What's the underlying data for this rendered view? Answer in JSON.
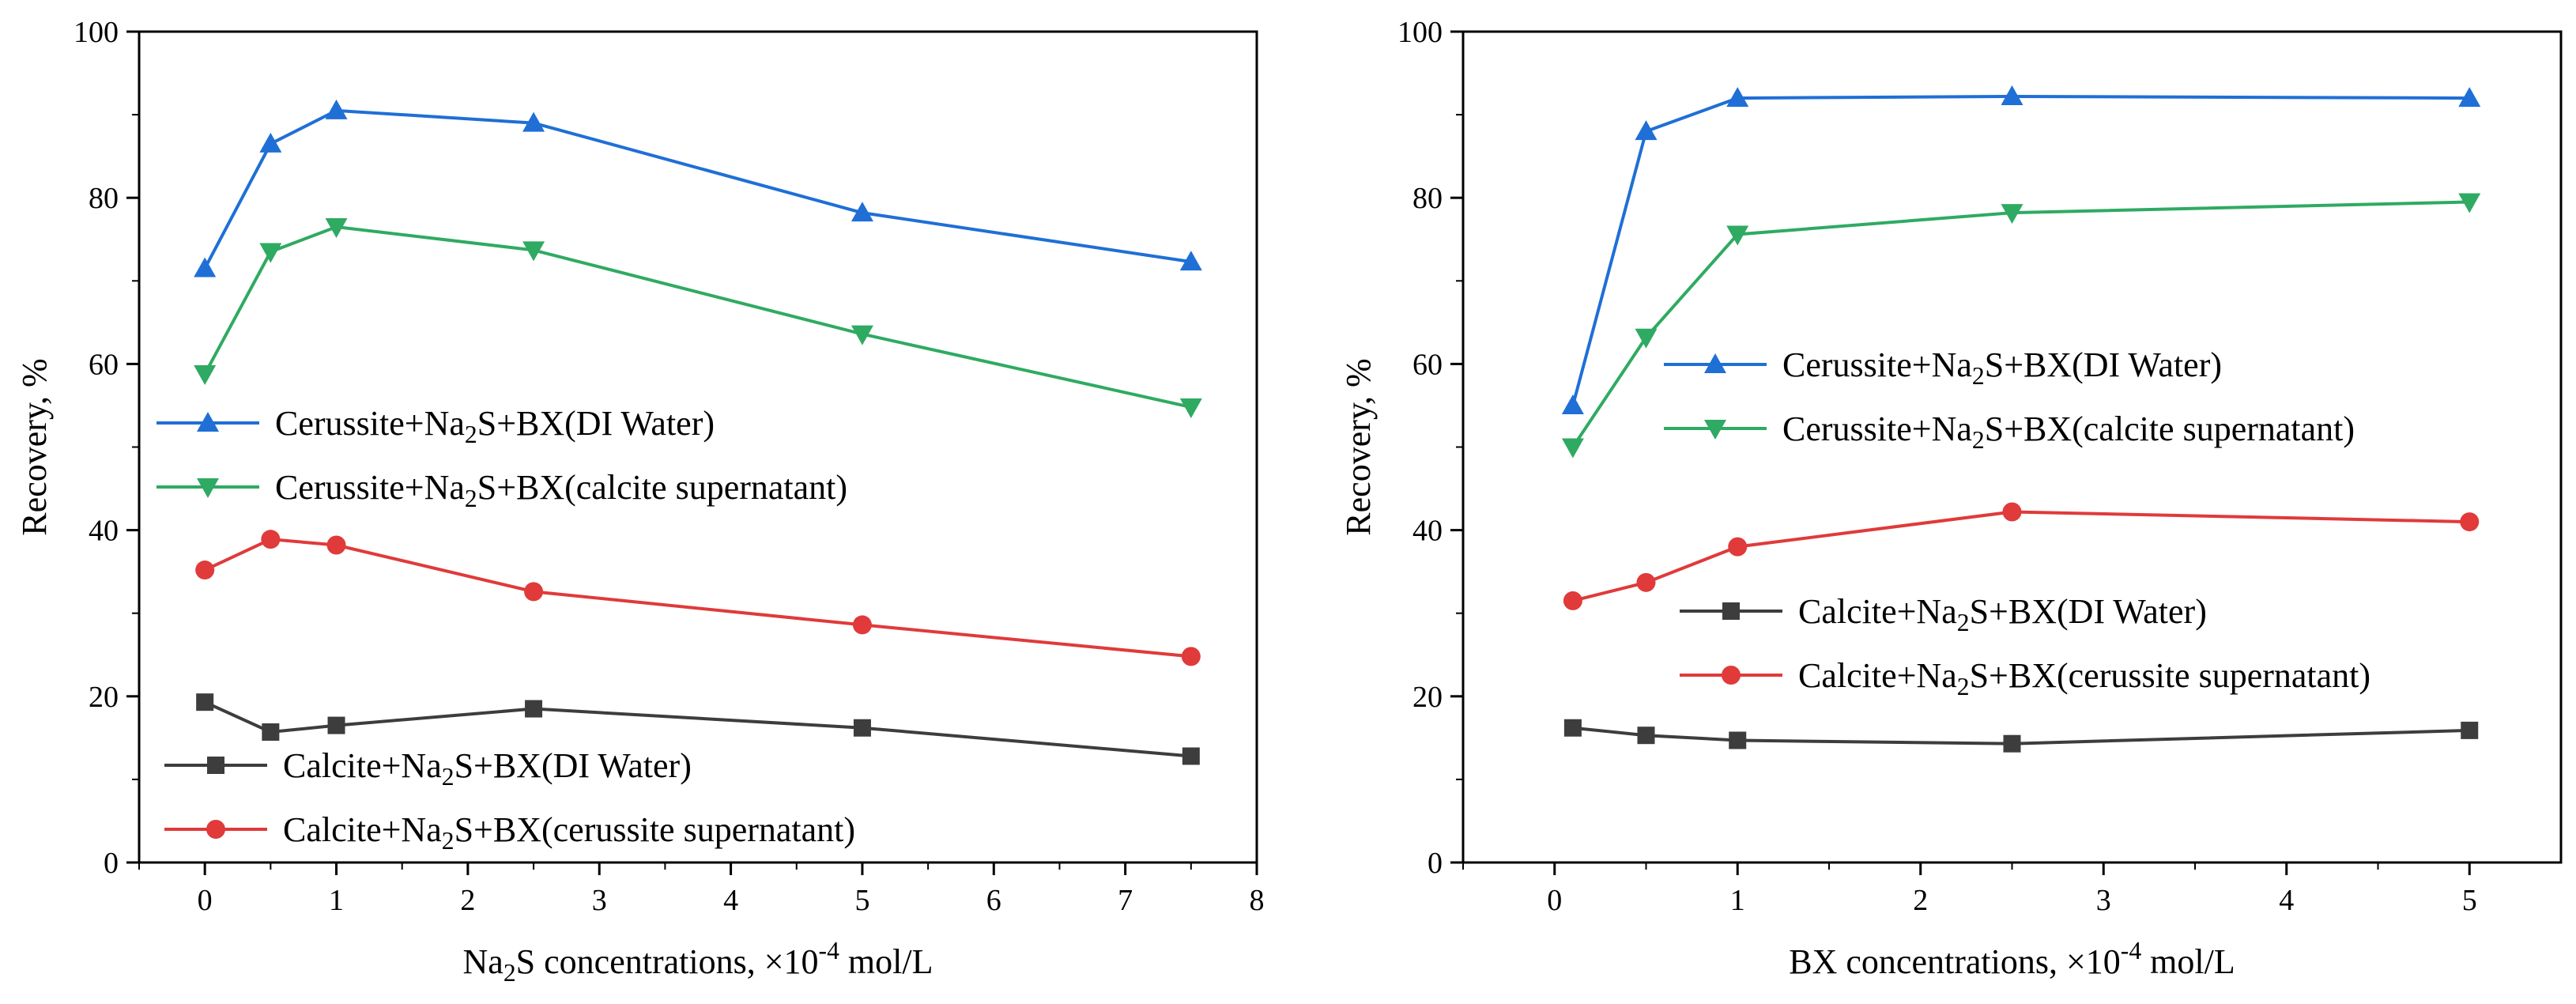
{
  "chart_data": [
    {
      "type": "line",
      "xlabel": "Na2S concentrations, ×10-4 mol/L",
      "xlabel_parts": {
        "pre": "Na",
        "sub": "2",
        "mid": "S concentrations, ×10",
        "sup": "-4",
        "post": " mol/L"
      },
      "ylabel": "Recovery, %",
      "xlim": [
        -0.5,
        8
      ],
      "ylim": [
        0,
        100
      ],
      "xticks": [
        0,
        1,
        2,
        3,
        4,
        5,
        6,
        7,
        8
      ],
      "yticks": [
        0,
        20,
        40,
        60,
        80,
        100
      ],
      "grid": false,
      "series": [
        {
          "name": "Cerussite+Na2S+BX(DI Water)",
          "name_parts": {
            "pre": "Cerussite+Na",
            "sub": "2",
            "post": "S+BX(DI Water)"
          },
          "marker": "triangle-up",
          "color": "#1f6fd6",
          "x": [
            0,
            0.5,
            1,
            2.5,
            5,
            7.5
          ],
          "values": [
            71.5,
            86.5,
            90.5,
            89.0,
            78.2,
            72.3
          ]
        },
        {
          "name": "Cerussite+Na2S+BX(calcite supernatant)",
          "name_parts": {
            "pre": "Cerussite+Na",
            "sub": "2",
            "post": "S+BX(calcite supernatant)"
          },
          "marker": "triangle-down",
          "color": "#2faa62",
          "x": [
            0,
            0.5,
            1,
            2.5,
            5,
            7.5
          ],
          "values": [
            58.8,
            73.5,
            76.5,
            73.7,
            63.6,
            54.8
          ]
        },
        {
          "name": "Calcite+Na2S+BX(DI Water)",
          "name_parts": {
            "pre": "Calcite+Na",
            "sub": "2",
            "post": "S+BX(DI Water)"
          },
          "marker": "square",
          "color": "#3d3d3d",
          "x": [
            0,
            0.5,
            1,
            2.5,
            5,
            7.5
          ],
          "values": [
            19.3,
            15.7,
            16.5,
            18.5,
            16.2,
            12.8
          ]
        },
        {
          "name": "Calcite+Na2S+BX(cerussite supernatant)",
          "name_parts": {
            "pre": "Calcite+Na",
            "sub": "2",
            "post": "S+BX(cerussite supernatant)"
          },
          "marker": "circle",
          "color": "#e03a3a",
          "x": [
            0,
            0.5,
            1,
            2.5,
            5,
            7.5
          ],
          "values": [
            35.2,
            38.9,
            38.2,
            32.6,
            28.6,
            24.8
          ]
        }
      ],
      "legend_groups": [
        {
          "placement": "middle-left",
          "series": [
            0,
            1
          ]
        },
        {
          "placement": "bottom-left",
          "series": [
            2,
            3
          ]
        }
      ]
    },
    {
      "type": "line",
      "xlabel": "BX concentrations, ×10-4 mol/L",
      "xlabel_parts": {
        "pre": "BX concentrations, ×10",
        "sup": "-4",
        "post": " mol/L"
      },
      "ylabel": "Recovery, %",
      "xlim": [
        -0.5,
        5.5
      ],
      "ylim": [
        0,
        100
      ],
      "xticks": [
        0,
        1,
        2,
        3,
        4,
        5
      ],
      "yticks": [
        0,
        20,
        40,
        60,
        80,
        100
      ],
      "grid": false,
      "series": [
        {
          "name": "Cerussite+Na2S+BX(DI Water)",
          "name_parts": {
            "pre": "Cerussite+Na",
            "sub": "2",
            "post": "S+BX(DI Water)"
          },
          "marker": "triangle-up",
          "color": "#1f6fd6",
          "x": [
            0.1,
            0.5,
            1,
            2.5,
            5
          ],
          "values": [
            55.0,
            88.0,
            92.0,
            92.2,
            92.0
          ]
        },
        {
          "name": "Cerussite+Na2S+BX(calcite supernatant)",
          "name_parts": {
            "pre": "Cerussite+Na",
            "sub": "2",
            "post": "S+BX(calcite supernatant)"
          },
          "marker": "triangle-down",
          "color": "#2faa62",
          "x": [
            0.1,
            0.5,
            1,
            2.5,
            5
          ],
          "values": [
            50.0,
            63.2,
            75.6,
            78.2,
            79.5
          ]
        },
        {
          "name": "Calcite+Na2S+BX(DI Water)",
          "name_parts": {
            "pre": "Calcite+Na",
            "sub": "2",
            "post": "S+BX(DI Water)"
          },
          "marker": "square",
          "color": "#3d3d3d",
          "x": [
            0.1,
            0.5,
            1,
            2.5,
            5
          ],
          "values": [
            16.2,
            15.3,
            14.7,
            14.3,
            15.9
          ]
        },
        {
          "name": "Calcite+Na2S+BX(cerussite supernatant)",
          "name_parts": {
            "pre": "Calcite+Na",
            "sub": "2",
            "post": "S+BX(cerussite supernatant)"
          },
          "marker": "circle",
          "color": "#e03a3a",
          "x": [
            0.1,
            0.5,
            1,
            2.5,
            5
          ],
          "values": [
            31.5,
            33.7,
            38.0,
            42.2,
            41.0
          ]
        }
      ],
      "legend_groups": [
        {
          "placement": "middle-left",
          "series": [
            0,
            1
          ]
        },
        {
          "placement": "bottom-right",
          "series": [
            2,
            3
          ]
        }
      ]
    }
  ]
}
